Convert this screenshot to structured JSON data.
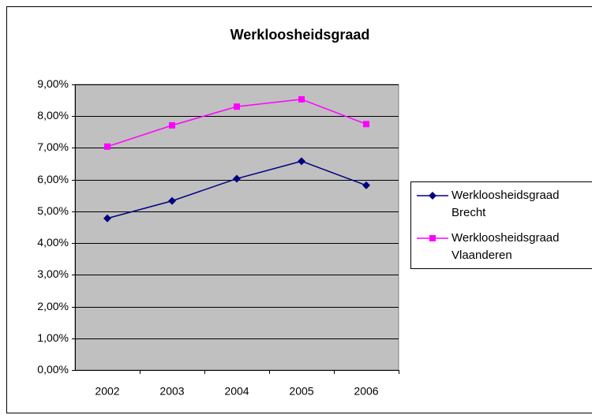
{
  "chart_data": {
    "type": "line",
    "title": "Werkloosheidsgraad",
    "categories": [
      "2002",
      "2003",
      "2004",
      "2005",
      "2006"
    ],
    "series": [
      {
        "name": "Werkloosheidsgraad Brecht",
        "color": "#000080",
        "marker": "diamond",
        "values": [
          4.78,
          5.33,
          6.03,
          6.58,
          5.82
        ]
      },
      {
        "name": "Werkloosheidsgraad Vlaanderen",
        "color": "#ff00ff",
        "marker": "square",
        "values": [
          7.04,
          7.71,
          8.3,
          8.53,
          7.75
        ]
      }
    ],
    "ylim": [
      0,
      9
    ],
    "yticks": [
      {
        "value": 0,
        "label": "0,00%"
      },
      {
        "value": 1,
        "label": "1,00%"
      },
      {
        "value": 2,
        "label": "2,00%"
      },
      {
        "value": 3,
        "label": "3,00%"
      },
      {
        "value": 4,
        "label": "4,00%"
      },
      {
        "value": 5,
        "label": "5,00%"
      },
      {
        "value": 6,
        "label": "6,00%"
      },
      {
        "value": 7,
        "label": "7,00%"
      },
      {
        "value": 8,
        "label": "8,00%"
      },
      {
        "value": 9,
        "label": "9,00%"
      }
    ],
    "grid": true,
    "legend": "right",
    "background": "#c0c0c0"
  }
}
